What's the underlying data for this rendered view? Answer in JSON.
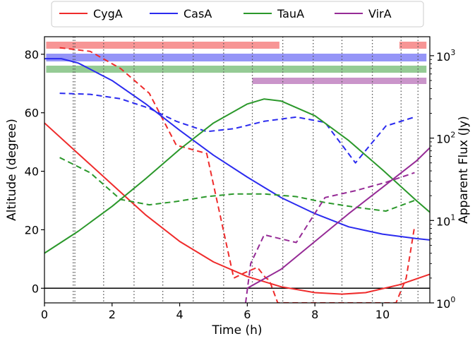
{
  "chart_data": {
    "type": "line",
    "title": "",
    "xlabel": "Time (h)",
    "ylabel": "Altitude (degree)",
    "y2label": "Apparent Flux (Jy)",
    "xlim": [
      0,
      11.4
    ],
    "ylim": [
      -5,
      86
    ],
    "y2lim": [
      1,
      1700
    ],
    "y2scale": "log",
    "x_ticks": [
      0,
      2,
      4,
      6,
      8,
      10
    ],
    "y_ticks": [
      0,
      20,
      40,
      60,
      80
    ],
    "y2_ticks": [
      1,
      10,
      100,
      1000
    ],
    "y2_tick_labels": [
      {
        "base": "10",
        "exp": "0"
      },
      {
        "base": "10",
        "exp": "1"
      },
      {
        "base": "10",
        "exp": "2"
      },
      {
        "base": "10",
        "exp": "3"
      }
    ],
    "grid": false,
    "legend_position": "top, above plot",
    "horizon_line": 0,
    "vertical_dotted_lines": [
      0.85,
      0.9,
      1.75,
      2.65,
      3.5,
      4.4,
      5.3,
      6.15,
      7.05,
      7.95,
      8.8,
      9.7,
      10.55,
      11.05
    ],
    "series": [
      {
        "name": "CygA",
        "color": "#ef2b2b",
        "altitude": [
          [
            0,
            56.5
          ],
          [
            1,
            46
          ],
          [
            2,
            35.5
          ],
          [
            3,
            25
          ],
          [
            4,
            16
          ],
          [
            5,
            9
          ],
          [
            6,
            4
          ],
          [
            7,
            0.5
          ],
          [
            8,
            -1.5
          ],
          [
            8.8,
            -2
          ],
          [
            9.5,
            -1.5
          ],
          [
            10.5,
            1.2
          ],
          [
            11.4,
            4.8
          ]
        ],
        "flux": [
          [
            0.45,
            1250
          ],
          [
            1.35,
            1130
          ],
          [
            2.25,
            700
          ],
          [
            3.1,
            350
          ],
          [
            3.9,
            82
          ],
          [
            4.8,
            65
          ],
          [
            5.6,
            2.0
          ],
          [
            5.9,
            2.3
          ],
          [
            6.3,
            2.7
          ],
          [
            6.55,
            2.0
          ],
          [
            6.65,
            1.9
          ],
          [
            6.9,
            1.0
          ],
          [
            10.4,
            1.0
          ],
          [
            10.7,
            2.0
          ],
          [
            10.95,
            8.5
          ]
        ],
        "visibility_bars": [
          [
            0.05,
            6.95
          ],
          [
            10.5,
            11.3
          ]
        ]
      },
      {
        "name": "CasA",
        "color": "#2b2bef",
        "altitude": [
          [
            0,
            78.5
          ],
          [
            0.5,
            78.5
          ],
          [
            1,
            77
          ],
          [
            2,
            71
          ],
          [
            3,
            63
          ],
          [
            4,
            54
          ],
          [
            5,
            45.5
          ],
          [
            6,
            38
          ],
          [
            7,
            31
          ],
          [
            8,
            25.5
          ],
          [
            9,
            21
          ],
          [
            10,
            18.5
          ],
          [
            11,
            17
          ],
          [
            11.4,
            16.5
          ]
        ],
        "flux": [
          [
            0.45,
            350
          ],
          [
            1.35,
            340
          ],
          [
            2.25,
            300
          ],
          [
            3.1,
            230
          ],
          [
            3.9,
            160
          ],
          [
            4.8,
            120
          ],
          [
            5.6,
            130
          ],
          [
            6.5,
            160
          ],
          [
            7.45,
            180
          ],
          [
            8.3,
            155
          ],
          [
            9.2,
            50
          ],
          [
            10.1,
            140
          ],
          [
            10.95,
            180
          ]
        ],
        "visibility_bars": [
          [
            0.05,
            11.3
          ]
        ]
      },
      {
        "name": "TauA",
        "color": "#2b982b",
        "altitude": [
          [
            0,
            12
          ],
          [
            1,
            19.5
          ],
          [
            2,
            28
          ],
          [
            3,
            37.5
          ],
          [
            4,
            47.5
          ],
          [
            5,
            56.5
          ],
          [
            6,
            63
          ],
          [
            6.5,
            64.7
          ],
          [
            7,
            64
          ],
          [
            8,
            59
          ],
          [
            9,
            50.5
          ],
          [
            10,
            40.5
          ],
          [
            11,
            30
          ],
          [
            11.4,
            26
          ]
        ],
        "flux": [
          [
            0.45,
            58
          ],
          [
            1.35,
            38
          ],
          [
            2.25,
            18
          ],
          [
            3.1,
            15.5
          ],
          [
            3.9,
            17
          ],
          [
            4.8,
            19.5
          ],
          [
            5.6,
            21
          ],
          [
            6.5,
            21
          ],
          [
            7.45,
            19.5
          ],
          [
            8.3,
            16.5
          ],
          [
            9.2,
            14.5
          ],
          [
            10.1,
            13
          ],
          [
            10.95,
            17.5
          ]
        ],
        "visibility_bars": [
          [
            0.05,
            11.3
          ]
        ]
      },
      {
        "name": "VirA",
        "color": "#962b96",
        "altitude": [
          [
            6,
            0
          ],
          [
            7,
            6.5
          ],
          [
            8,
            16
          ],
          [
            9,
            25.5
          ],
          [
            10,
            34.5
          ],
          [
            11,
            43.5
          ],
          [
            11.4,
            48
          ]
        ],
        "flux": [
          [
            5.95,
            1.0
          ],
          [
            6.1,
            3.0
          ],
          [
            6.5,
            6.7
          ],
          [
            7.45,
            5.4
          ],
          [
            8.3,
            19
          ],
          [
            9.2,
            23
          ],
          [
            10.1,
            29
          ],
          [
            10.95,
            38
          ]
        ],
        "visibility_bars": [
          [
            6.15,
            11.3
          ]
        ]
      }
    ]
  }
}
